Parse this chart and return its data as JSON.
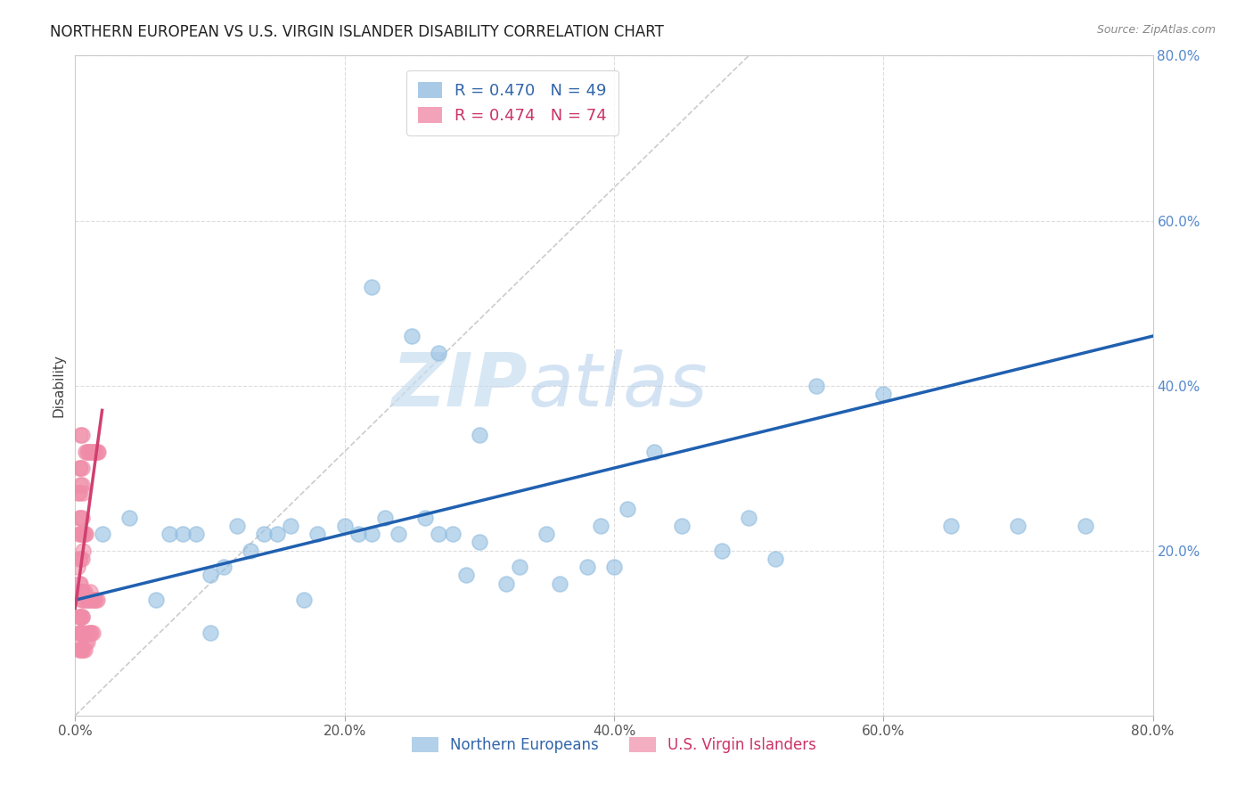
{
  "title": "NORTHERN EUROPEAN VS U.S. VIRGIN ISLANDER DISABILITY CORRELATION CHART",
  "source": "Source: ZipAtlas.com",
  "ylabel": "Disability",
  "xlim": [
    0,
    0.8
  ],
  "ylim": [
    0,
    0.8
  ],
  "xtick_labels": [
    "0.0%",
    "",
    "",
    "",
    "",
    "20.0%",
    "",
    "",
    "",
    "",
    "40.0%",
    "",
    "",
    "",
    "",
    "60.0%",
    "",
    "",
    "",
    "",
    "80.0%"
  ],
  "xtick_vals": [
    0.0,
    0.04,
    0.08,
    0.12,
    0.16,
    0.2,
    0.24,
    0.28,
    0.32,
    0.36,
    0.4,
    0.44,
    0.48,
    0.52,
    0.56,
    0.6,
    0.64,
    0.68,
    0.72,
    0.76,
    0.8
  ],
  "ytick_right_labels": [
    "20.0%",
    "40.0%",
    "60.0%",
    "80.0%"
  ],
  "ytick_right_vals": [
    0.2,
    0.4,
    0.6,
    0.8
  ],
  "blue_R": 0.47,
  "blue_N": 49,
  "pink_R": 0.474,
  "pink_N": 74,
  "blue_color": "#92bde0",
  "pink_color": "#f08ca8",
  "blue_line_color": "#2060b0",
  "pink_line_color": "#d04070",
  "diag_color": "#cccccc",
  "watermark_zip": "ZIP",
  "watermark_atlas": "atlas",
  "background_color": "#ffffff",
  "grid_color": "#dddddd",
  "blue_scatter_x": [
    0.005,
    0.02,
    0.04,
    0.06,
    0.07,
    0.08,
    0.09,
    0.1,
    0.11,
    0.12,
    0.13,
    0.14,
    0.15,
    0.16,
    0.17,
    0.18,
    0.2,
    0.21,
    0.22,
    0.23,
    0.24,
    0.26,
    0.27,
    0.28,
    0.29,
    0.3,
    0.32,
    0.33,
    0.35,
    0.36,
    0.38,
    0.39,
    0.4,
    0.41,
    0.43,
    0.45,
    0.48,
    0.5,
    0.52,
    0.55,
    0.6,
    0.65,
    0.7,
    0.75,
    0.22,
    0.25,
    0.27,
    0.3,
    0.1
  ],
  "blue_scatter_y": [
    0.15,
    0.22,
    0.24,
    0.14,
    0.22,
    0.22,
    0.22,
    0.17,
    0.18,
    0.23,
    0.2,
    0.22,
    0.22,
    0.23,
    0.14,
    0.22,
    0.23,
    0.22,
    0.22,
    0.24,
    0.22,
    0.24,
    0.22,
    0.22,
    0.17,
    0.21,
    0.16,
    0.18,
    0.22,
    0.16,
    0.18,
    0.23,
    0.18,
    0.25,
    0.32,
    0.23,
    0.2,
    0.24,
    0.19,
    0.4,
    0.39,
    0.23,
    0.23,
    0.23,
    0.52,
    0.46,
    0.44,
    0.34,
    0.1
  ],
  "pink_scatter_x": [
    0.002,
    0.003,
    0.004,
    0.005,
    0.006,
    0.007,
    0.008,
    0.009,
    0.01,
    0.011,
    0.012,
    0.013,
    0.014,
    0.015,
    0.016,
    0.003,
    0.004,
    0.005,
    0.006,
    0.007,
    0.008,
    0.003,
    0.004,
    0.005,
    0.006,
    0.002,
    0.003,
    0.004,
    0.005,
    0.006,
    0.003,
    0.004,
    0.005,
    0.002,
    0.003,
    0.004,
    0.005,
    0.006,
    0.003,
    0.004,
    0.005,
    0.004,
    0.005,
    0.003,
    0.004,
    0.005,
    0.006,
    0.004,
    0.005,
    0.003,
    0.004,
    0.005,
    0.004,
    0.003,
    0.004,
    0.005,
    0.006,
    0.007,
    0.008,
    0.009,
    0.01,
    0.011,
    0.012,
    0.013,
    0.008,
    0.009,
    0.01,
    0.011,
    0.012,
    0.013,
    0.014,
    0.015,
    0.016,
    0.017
  ],
  "pink_scatter_y": [
    0.15,
    0.16,
    0.15,
    0.14,
    0.14,
    0.15,
    0.14,
    0.14,
    0.14,
    0.15,
    0.14,
    0.14,
    0.14,
    0.14,
    0.14,
    0.22,
    0.22,
    0.22,
    0.22,
    0.22,
    0.22,
    0.15,
    0.16,
    0.15,
    0.15,
    0.18,
    0.19,
    0.19,
    0.19,
    0.2,
    0.24,
    0.24,
    0.24,
    0.27,
    0.27,
    0.28,
    0.28,
    0.27,
    0.3,
    0.3,
    0.3,
    0.34,
    0.34,
    0.1,
    0.1,
    0.1,
    0.1,
    0.12,
    0.12,
    0.12,
    0.12,
    0.12,
    0.09,
    0.08,
    0.08,
    0.08,
    0.08,
    0.08,
    0.09,
    0.09,
    0.1,
    0.1,
    0.1,
    0.1,
    0.32,
    0.32,
    0.32,
    0.32,
    0.32,
    0.32,
    0.32,
    0.32,
    0.32,
    0.32
  ]
}
